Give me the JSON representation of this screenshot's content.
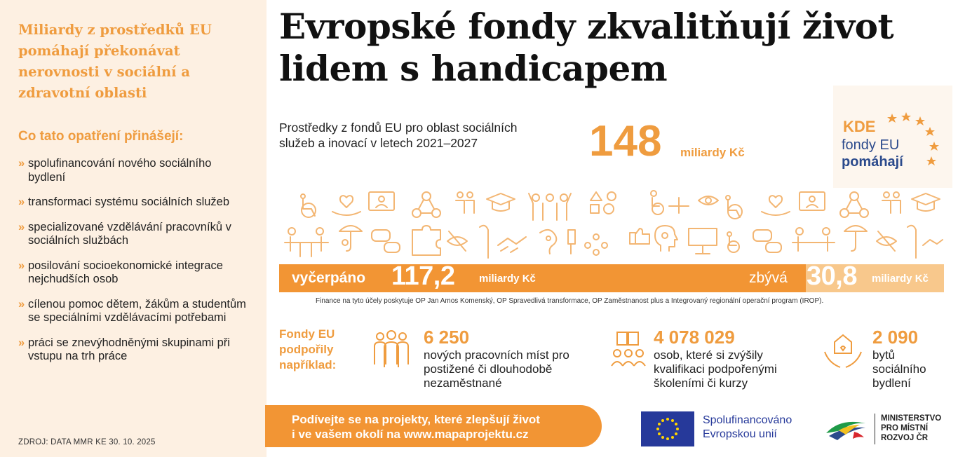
{
  "left_panel": {
    "title": "Miliardy z prostředků EU pomáhají překonávat nerovnosti v sociální a zdravotní oblasti",
    "subtitle": "Co tato opatření přinášejí:",
    "bullet_symbol": "»",
    "benefits": [
      "spolufinancování nového sociálního bydlení",
      "transformaci systému sociálních služeb",
      "specializované vzdělávání pracovníků v sociálních službách",
      "posilování socioekonomické integrace nejchudších osob",
      "cílenou pomoc dětem, žákům a studentům se speciálními vzdělávacími potřebami",
      "práci se znevýhodněnými skupinami při vstupu na trh práce"
    ],
    "source": "ZDROJ: DATA MMR KE 30. 10. 2025"
  },
  "header": {
    "headline": "Evropské fondy zkvalitňují život lidem s handicapem"
  },
  "funding": {
    "intro": "Prostředky z fondů EU pro oblast sociálních služeb a inovací v letech 2021–2027",
    "total_amount": "148",
    "total_unit": "miliardy Kč"
  },
  "kde_logo": {
    "line1": "KDE",
    "line2": "fondy EU",
    "line3": "pomáhají"
  },
  "progress": {
    "spent_label": "vyčerpáno",
    "spent_value": "117,2",
    "spent_unit": "miliardy Kč",
    "remaining_label": "zbývá",
    "remaining_value": "30,8",
    "remaining_unit": "miliardy Kč",
    "spent_fraction": 0.7919,
    "note": "Finance na tyto účely poskytuje OP Jan Amos Komenský, OP Spravedlivá transformace, OP Zaměstnanost plus a Integrovaný regionální operační program (IROP)."
  },
  "stats": {
    "heading": "Fondy EU podpořily například:",
    "items": [
      {
        "icon": "people-group-icon",
        "value": "6 250",
        "text": "nových pracovních míst pro postižené či dlouhodobě nezaměstnané"
      },
      {
        "icon": "education-people-icon",
        "value": "4 078 029",
        "text": "osob, které si zvýšily kvalifikaci podpořenými školeními či kurzy"
      },
      {
        "icon": "housing-hands-icon",
        "value": "2 090",
        "text": "bytů sociálního bydlení"
      }
    ]
  },
  "cta": {
    "line1": "Podívejte se na projekty, které zlepšují život",
    "line2": "i ve vašem okolí na www.mapaprojektu.cz"
  },
  "eu_logo": {
    "line1": "Spolufinancováno",
    "line2": "Evropskou unií"
  },
  "mmr_logo": {
    "line1": "MINISTERSTVO",
    "line2": "PRO MÍSTNÍ",
    "line3": "ROZVOJ ČR"
  },
  "colors": {
    "accent": "#ef9c3f",
    "bar": "#f29534",
    "bar_remaining": "#f8c88c",
    "left_bg": "#fdf0e2",
    "eu_blue": "#26399a"
  }
}
